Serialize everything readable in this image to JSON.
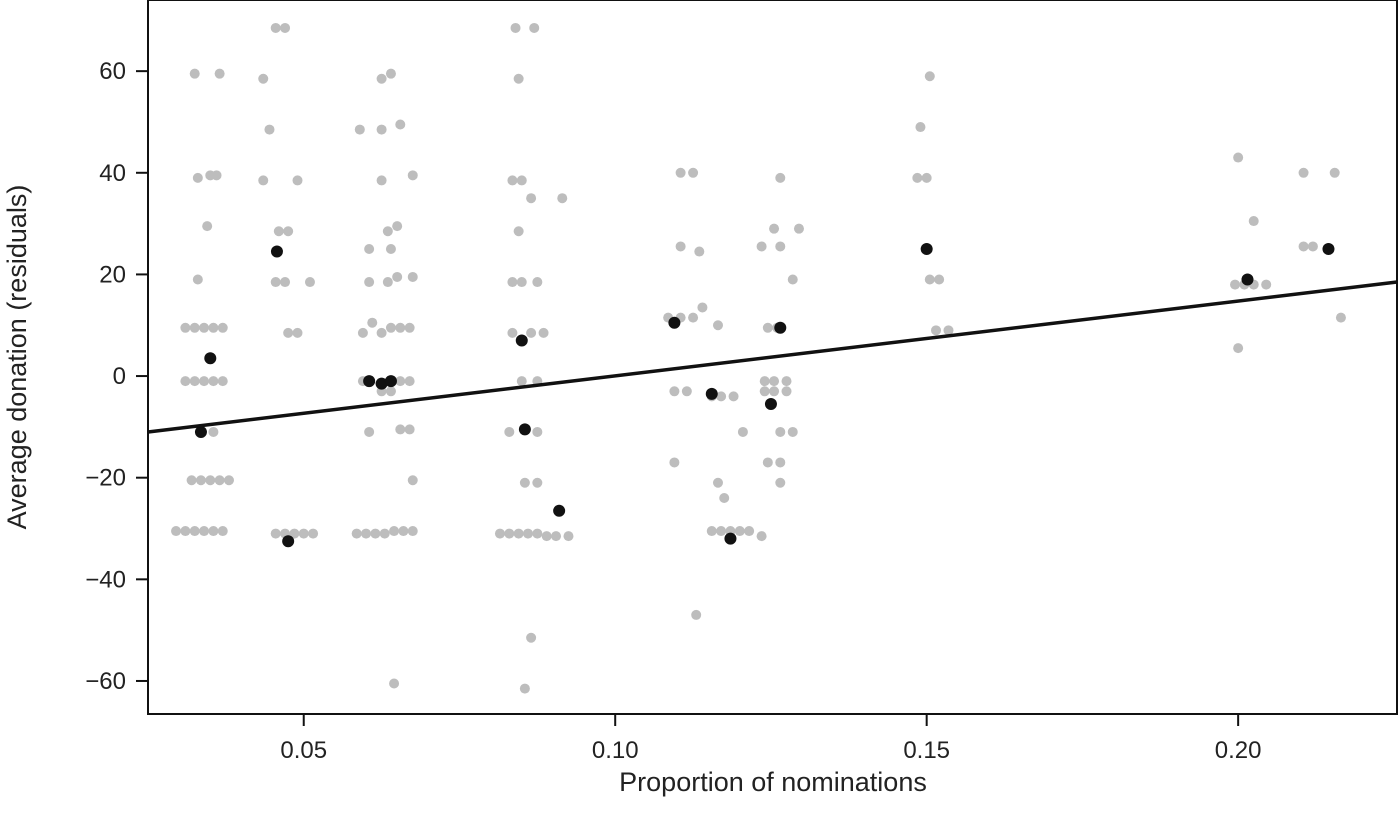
{
  "chart_data": {
    "type": "scatter",
    "xlabel": "Proportion of nominations",
    "ylabel": "Average donation (residuals)",
    "xlim": [
      0.025,
      0.2255
    ],
    "ylim": [
      -66.5,
      74
    ],
    "x_ticks": [
      0.05,
      0.1,
      0.15,
      0.2
    ],
    "x_tick_labels": [
      "0.05",
      "0.10",
      "0.15",
      "0.20"
    ],
    "y_ticks": [
      60,
      40,
      20,
      0,
      -20,
      -40,
      -60
    ],
    "y_tick_labels": [
      "60",
      "40",
      "20",
      "0",
      "−20",
      "−40",
      "−60"
    ],
    "grid": false,
    "legend": "none",
    "colors": {
      "individual": "#bdbdbd",
      "mean": "#111111",
      "fit": "#111111",
      "axis": "#111111"
    },
    "series": [
      {
        "role": "individual",
        "points": [
          [
            0.0325,
            59.5
          ],
          [
            0.0365,
            59.5
          ],
          [
            0.033,
            39
          ],
          [
            0.035,
            39.5
          ],
          [
            0.036,
            39.5
          ],
          [
            0.0345,
            29.5
          ],
          [
            0.033,
            19
          ],
          [
            0.031,
            9.5
          ],
          [
            0.0325,
            9.5
          ],
          [
            0.034,
            9.5
          ],
          [
            0.0355,
            9.5
          ],
          [
            0.037,
            9.5
          ],
          [
            0.031,
            -1
          ],
          [
            0.0325,
            -1
          ],
          [
            0.034,
            -1
          ],
          [
            0.0355,
            -1
          ],
          [
            0.037,
            -1
          ],
          [
            0.0355,
            -11
          ],
          [
            0.032,
            -20.5
          ],
          [
            0.0335,
            -20.5
          ],
          [
            0.035,
            -20.5
          ],
          [
            0.0365,
            -20.5
          ],
          [
            0.038,
            -20.5
          ],
          [
            0.0295,
            -30.5
          ],
          [
            0.031,
            -30.5
          ],
          [
            0.0325,
            -30.5
          ],
          [
            0.034,
            -30.5
          ],
          [
            0.0355,
            -30.5
          ],
          [
            0.037,
            -30.5
          ],
          [
            0.0435,
            58.5
          ],
          [
            0.0445,
            48.5
          ],
          [
            0.0435,
            38.5
          ],
          [
            0.0455,
            68.5
          ],
          [
            0.047,
            68.5
          ],
          [
            0.046,
            28.5
          ],
          [
            0.0475,
            28.5
          ],
          [
            0.0455,
            18.5
          ],
          [
            0.047,
            18.5
          ],
          [
            0.0475,
            8.5
          ],
          [
            0.049,
            8.5
          ],
          [
            0.049,
            38.5
          ],
          [
            0.051,
            18.5
          ],
          [
            0.0455,
            -31
          ],
          [
            0.047,
            -31
          ],
          [
            0.0485,
            -31
          ],
          [
            0.05,
            -31
          ],
          [
            0.0515,
            -31
          ],
          [
            0.0625,
            58.5
          ],
          [
            0.064,
            59.5
          ],
          [
            0.059,
            48.5
          ],
          [
            0.0625,
            48.5
          ],
          [
            0.0655,
            49.5
          ],
          [
            0.0625,
            38.5
          ],
          [
            0.0675,
            39.5
          ],
          [
            0.0605,
            25
          ],
          [
            0.0635,
            28.5
          ],
          [
            0.065,
            29.5
          ],
          [
            0.064,
            25
          ],
          [
            0.0605,
            18.5
          ],
          [
            0.0635,
            18.5
          ],
          [
            0.065,
            19.5
          ],
          [
            0.0675,
            19.5
          ],
          [
            0.0595,
            8.5
          ],
          [
            0.061,
            10.5
          ],
          [
            0.0625,
            8.5
          ],
          [
            0.064,
            9.5
          ],
          [
            0.0655,
            9.5
          ],
          [
            0.067,
            9.5
          ],
          [
            0.0595,
            -1
          ],
          [
            0.0625,
            -3
          ],
          [
            0.064,
            -3
          ],
          [
            0.0655,
            -1
          ],
          [
            0.067,
            -1
          ],
          [
            0.0605,
            -11
          ],
          [
            0.0655,
            -10.5
          ],
          [
            0.067,
            -10.5
          ],
          [
            0.0675,
            -20.5
          ],
          [
            0.0585,
            -31
          ],
          [
            0.06,
            -31
          ],
          [
            0.0615,
            -31
          ],
          [
            0.063,
            -31
          ],
          [
            0.0645,
            -30.5
          ],
          [
            0.066,
            -30.5
          ],
          [
            0.0675,
            -30.5
          ],
          [
            0.0645,
            -60.5
          ],
          [
            0.084,
            68.5
          ],
          [
            0.087,
            68.5
          ],
          [
            0.0845,
            58.5
          ],
          [
            0.0835,
            38.5
          ],
          [
            0.085,
            38.5
          ],
          [
            0.0865,
            35
          ],
          [
            0.0915,
            35
          ],
          [
            0.0845,
            28.5
          ],
          [
            0.0835,
            18.5
          ],
          [
            0.085,
            18.5
          ],
          [
            0.0875,
            18.5
          ],
          [
            0.0835,
            8.5
          ],
          [
            0.0865,
            8.5
          ],
          [
            0.0885,
            8.5
          ],
          [
            0.085,
            -1
          ],
          [
            0.0875,
            -1
          ],
          [
            0.083,
            -11
          ],
          [
            0.0875,
            -11
          ],
          [
            0.0855,
            -21
          ],
          [
            0.0875,
            -21
          ],
          [
            0.0815,
            -31
          ],
          [
            0.083,
            -31
          ],
          [
            0.0845,
            -31
          ],
          [
            0.086,
            -31
          ],
          [
            0.0875,
            -31
          ],
          [
            0.089,
            -31.5
          ],
          [
            0.0905,
            -31.5
          ],
          [
            0.0925,
            -31.5
          ],
          [
            0.0865,
            -51.5
          ],
          [
            0.0855,
            -61.5
          ],
          [
            0.1105,
            40
          ],
          [
            0.1125,
            40
          ],
          [
            0.1105,
            25.5
          ],
          [
            0.1135,
            24.5
          ],
          [
            0.1085,
            11.5
          ],
          [
            0.1105,
            11.5
          ],
          [
            0.1125,
            11.5
          ],
          [
            0.114,
            13.5
          ],
          [
            0.1165,
            10
          ],
          [
            0.1095,
            -3
          ],
          [
            0.1115,
            -3
          ],
          [
            0.1155,
            -4
          ],
          [
            0.117,
            -4
          ],
          [
            0.119,
            -4
          ],
          [
            0.1205,
            -11
          ],
          [
            0.1095,
            -17
          ],
          [
            0.1165,
            -21
          ],
          [
            0.1175,
            -24
          ],
          [
            0.1155,
            -30.5
          ],
          [
            0.117,
            -30.5
          ],
          [
            0.1185,
            -30.5
          ],
          [
            0.12,
            -30.5
          ],
          [
            0.1215,
            -30.5
          ],
          [
            0.1235,
            -31.5
          ],
          [
            0.113,
            -47
          ],
          [
            0.1265,
            39
          ],
          [
            0.1255,
            29
          ],
          [
            0.1295,
            29
          ],
          [
            0.1235,
            25.5
          ],
          [
            0.1265,
            25.5
          ],
          [
            0.1245,
            9.5
          ],
          [
            0.126,
            9.5
          ],
          [
            0.1285,
            19
          ],
          [
            0.124,
            -1
          ],
          [
            0.1255,
            -1
          ],
          [
            0.1275,
            -1
          ],
          [
            0.124,
            -3
          ],
          [
            0.1255,
            -3
          ],
          [
            0.1275,
            -3
          ],
          [
            0.1265,
            -11
          ],
          [
            0.1285,
            -11
          ],
          [
            0.1245,
            -17
          ],
          [
            0.1265,
            -17
          ],
          [
            0.1265,
            -21
          ],
          [
            0.149,
            49
          ],
          [
            0.1505,
            59
          ],
          [
            0.1485,
            39
          ],
          [
            0.15,
            39
          ],
          [
            0.1505,
            19
          ],
          [
            0.152,
            19
          ],
          [
            0.1515,
            9
          ],
          [
            0.1535,
            9
          ],
          [
            0.2,
            43
          ],
          [
            0.2,
            5.5
          ],
          [
            0.2025,
            30.5
          ],
          [
            0.1995,
            18
          ],
          [
            0.201,
            18
          ],
          [
            0.2045,
            18
          ],
          [
            0.2025,
            18
          ],
          [
            0.2105,
            40
          ],
          [
            0.2155,
            40
          ],
          [
            0.2105,
            25.5
          ],
          [
            0.212,
            25.5
          ],
          [
            0.2165,
            11.5
          ]
        ]
      },
      {
        "role": "mean",
        "points": [
          [
            0.0335,
            -11
          ],
          [
            0.035,
            3.5
          ],
          [
            0.0457,
            24.5
          ],
          [
            0.0475,
            -32.5
          ],
          [
            0.0605,
            -1
          ],
          [
            0.0625,
            -1.5
          ],
          [
            0.064,
            -1
          ],
          [
            0.085,
            7
          ],
          [
            0.0855,
            -10.5
          ],
          [
            0.091,
            -26.5
          ],
          [
            0.1095,
            10.5
          ],
          [
            0.1155,
            -3.5
          ],
          [
            0.1185,
            -32
          ],
          [
            0.125,
            -5.5
          ],
          [
            0.1265,
            9.5
          ],
          [
            0.15,
            25
          ],
          [
            0.2015,
            19
          ],
          [
            0.2145,
            25
          ]
        ]
      }
    ],
    "fit_line": {
      "x": [
        0.025,
        0.2255
      ],
      "y": [
        -11.0,
        18.5
      ]
    }
  }
}
